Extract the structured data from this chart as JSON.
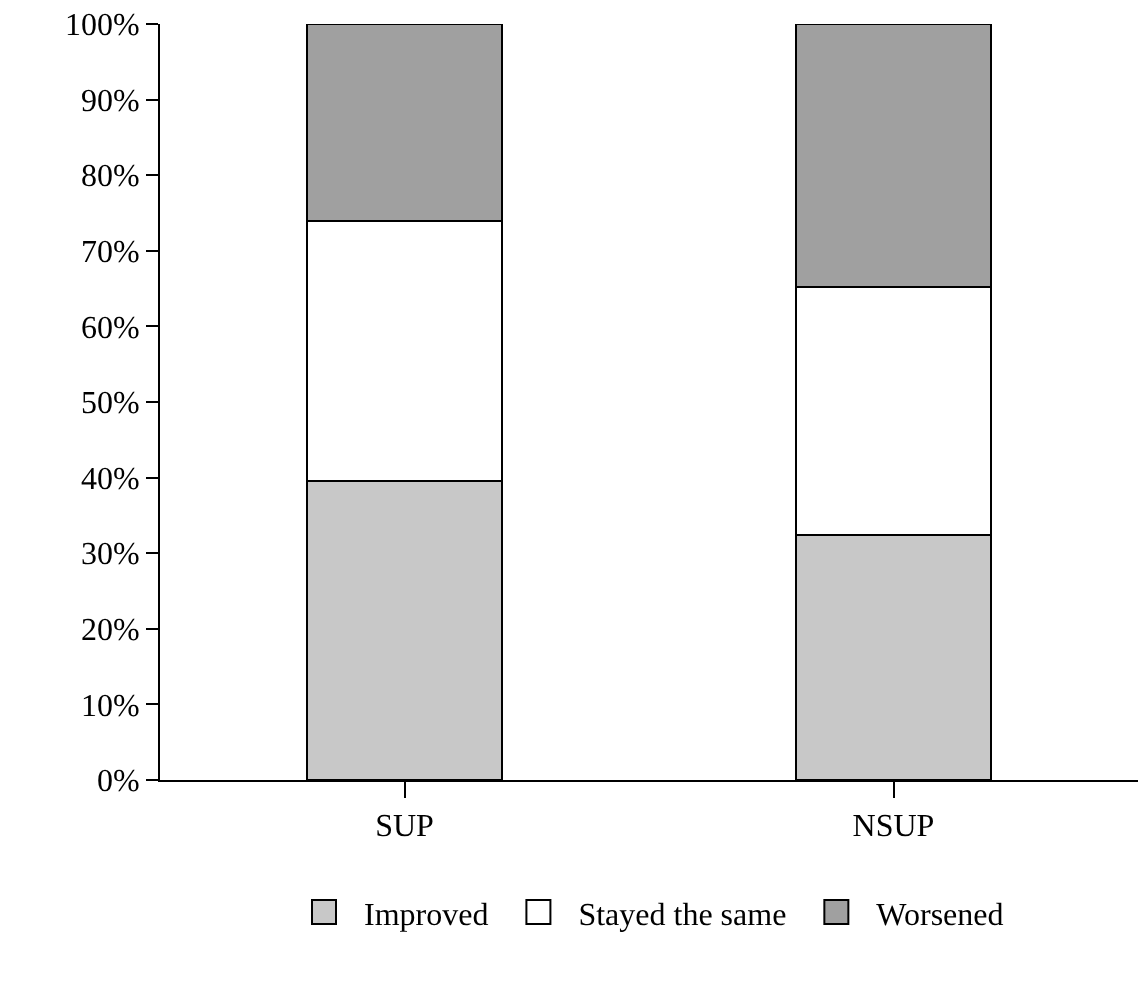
{
  "chart_data": {
    "type": "bar",
    "stacked": true,
    "categories": [
      "SUP",
      "NSUP"
    ],
    "series": [
      {
        "name": "Improved",
        "color": "#c8c8c8",
        "values": [
          39.6,
          32.4
        ]
      },
      {
        "name": "Stayed the same",
        "color": "#ffffff",
        "values": [
          34.4,
          32.8
        ]
      },
      {
        "name": "Worsened",
        "color": "#a0a0a0",
        "values": [
          26.0,
          34.8
        ]
      }
    ],
    "ylim": [
      0,
      100
    ],
    "yticks": [
      {
        "value": 0,
        "label": "0%"
      },
      {
        "value": 10,
        "label": "10%"
      },
      {
        "value": 20,
        "label": "20%"
      },
      {
        "value": 30,
        "label": "30%"
      },
      {
        "value": 40,
        "label": "40%"
      },
      {
        "value": 50,
        "label": "50%"
      },
      {
        "value": 60,
        "label": "60%"
      },
      {
        "value": 70,
        "label": "70%"
      },
      {
        "value": 80,
        "label": "80%"
      },
      {
        "value": 90,
        "label": "90%"
      },
      {
        "value": 100,
        "label": "100%"
      }
    ],
    "legend": "bottom"
  }
}
